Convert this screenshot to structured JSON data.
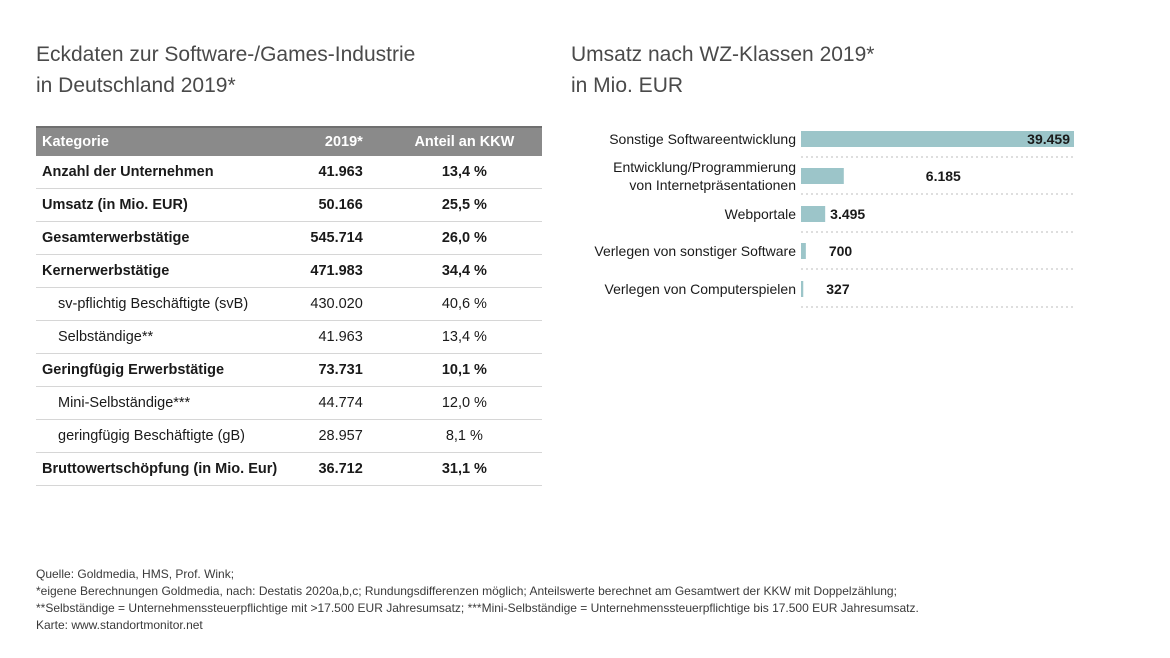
{
  "left_title": {
    "line1": "Eckdaten zur Software-/Games-Industrie",
    "line2": "in Deutschland 2019*"
  },
  "right_title": {
    "line1": "Umsatz nach WZ-Klassen 2019*",
    "line2": "in Mio. EUR"
  },
  "table": {
    "headers": {
      "category": "Kategorie",
      "year": "2019*",
      "share": "Anteil an KKW"
    },
    "rows": [
      {
        "label": "Anzahl der Unternehmen",
        "value": "41.963",
        "share": "13,4 %",
        "bold": true,
        "indent": false
      },
      {
        "label": "Umsatz (in Mio. EUR)",
        "value": "50.166",
        "share": "25,5 %",
        "bold": true,
        "indent": false
      },
      {
        "label": "Gesamterwerbstätige",
        "value": "545.714",
        "share": "26,0 %",
        "bold": true,
        "indent": false
      },
      {
        "label": "Kernerwerbstätige",
        "value": "471.983",
        "share": "34,4 %",
        "bold": true,
        "indent": false
      },
      {
        "label": "sv-pflichtig Beschäftigte (svB)",
        "value": "430.020",
        "share": "40,6 %",
        "bold": false,
        "indent": true
      },
      {
        "label": "Selbständige**",
        "value": "41.963",
        "share": "13,4 %",
        "bold": false,
        "indent": true
      },
      {
        "label": "Geringfügig Erwerbstätige",
        "value": "73.731",
        "share": "10,1 %",
        "bold": true,
        "indent": false
      },
      {
        "label": "Mini-Selbständige***",
        "value": "44.774",
        "share": "12,0 %",
        "bold": false,
        "indent": true
      },
      {
        "label": "geringfügig Beschäftigte (gB)",
        "value": "28.957",
        "share": "8,1 %",
        "bold": false,
        "indent": true
      },
      {
        "label": "Bruttowertschöpfung (in Mio. Eur)",
        "value": "36.712",
        "share": "31,1 %",
        "bold": true,
        "indent": false
      }
    ]
  },
  "chart_data": {
    "type": "bar",
    "orientation": "horizontal",
    "title": "Umsatz nach WZ-Klassen 2019*",
    "subtitle": "in Mio. EUR",
    "categories": [
      "Sonstige Softwareentwicklung",
      "Entwicklung/Programmierung von Internetpräsentationen",
      "Webportale",
      "Verlegen von sonstiger Software",
      "Verlegen von Computerspielen"
    ],
    "category_lines": [
      [
        "Sonstige Softwareentwicklung"
      ],
      [
        "Entwicklung/Programmierung",
        "von Internetpräsentationen"
      ],
      [
        "Webportale"
      ],
      [
        "Verlegen von sonstiger Software"
      ],
      [
        "Verlegen von Computerspielen"
      ]
    ],
    "values": [
      39459,
      6185,
      3495,
      700,
      327
    ],
    "value_labels": [
      "39.459",
      "6.185",
      "3.495",
      "700",
      "327"
    ],
    "xlim": [
      0,
      39459
    ],
    "bar_color": "#9cc5c9",
    "grid": "dotted separators"
  },
  "footnotes": [
    "Quelle: Goldmedia, HMS, Prof. Wink;",
    "*eigene Berechnungen Goldmedia, nach: Destatis 2020a,b,c; Rundungsdifferenzen möglich; Anteilswerte berechnet am Gesamtwert der KKW mit Doppelzählung;",
    "**Selbständige = Unternehmenssteuerpflichtige mit >17.500 EUR Jahresumsatz; ***Mini-Selbständige = Unternehmenssteuerpflichtige bis 17.500 EUR Jahresumsatz.",
    "Karte: www.standortmonitor.net"
  ],
  "colors": {
    "header_bg": "#8a8a8a",
    "bar": "#9cc5c9",
    "title": "#4a4a4a"
  }
}
